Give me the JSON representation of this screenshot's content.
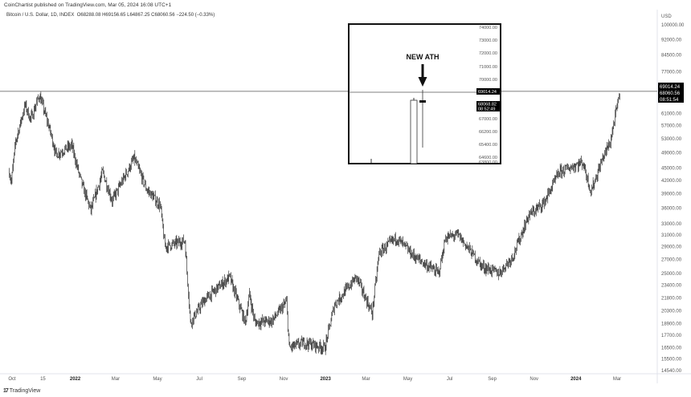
{
  "header": {
    "published": "CoinChartist published on TradingView.com, Mar 05, 2024 16:08 UTC+1",
    "symbol": "Bitcoin / U.S. Dollar, 1D, INDEX",
    "open": "O68288.08",
    "high": "H69156.65",
    "low": "L64867.25",
    "close": "C68060.56",
    "change": "−224.50 (−0.33%)"
  },
  "footer": {
    "brand": "TradingView",
    "logo_icon": "tradingview-logo-icon"
  },
  "colors": {
    "candle": "#111111",
    "background": "#ffffff",
    "label_bg": "#000000",
    "grid_border": "#e0e3eb"
  },
  "chart_data": {
    "type": "candlestick",
    "title": "Bitcoin / U.S. Dollar, 1D, INDEX",
    "scale": "log",
    "currency": "USD",
    "ylim": [
      14540,
      100000
    ],
    "y_ticks": [
      "100000.00",
      "92000.00",
      "84500.00",
      "77000.00",
      "61000.00",
      "57000.00",
      "53000.00",
      "49000.00",
      "45000.00",
      "42000.00",
      "39000.00",
      "36000.00",
      "33000.00",
      "31000.00",
      "29000.00",
      "27000.00",
      "25000.00",
      "23400.00",
      "21800.00",
      "20300.00",
      "18900.00",
      "17700.00",
      "16500.00",
      "15500.00",
      "14540.00"
    ],
    "x_ticks": [
      {
        "label": "Oct",
        "date": "2021-10-01",
        "bold": false
      },
      {
        "label": "15",
        "date": "2021-11-15",
        "bold": false
      },
      {
        "label": "2022",
        "date": "2022-01-01",
        "bold": true
      },
      {
        "label": "Mar",
        "date": "2022-03-01",
        "bold": false
      },
      {
        "label": "May",
        "date": "2022-05-01",
        "bold": false
      },
      {
        "label": "Jul",
        "date": "2022-07-01",
        "bold": false
      },
      {
        "label": "Sep",
        "date": "2022-09-01",
        "bold": false
      },
      {
        "label": "Nov",
        "date": "2022-11-01",
        "bold": false
      },
      {
        "label": "2023",
        "date": "2023-01-01",
        "bold": true
      },
      {
        "label": "Mar",
        "date": "2023-03-01",
        "bold": false
      },
      {
        "label": "May",
        "date": "2023-05-01",
        "bold": false
      },
      {
        "label": "Jul",
        "date": "2023-07-01",
        "bold": false
      },
      {
        "label": "Sep",
        "date": "2023-09-01",
        "bold": false
      },
      {
        "label": "Nov",
        "date": "2023-11-01",
        "bold": false
      },
      {
        "label": "2024",
        "date": "2024-01-01",
        "bold": true
      },
      {
        "label": "Mar",
        "date": "2024-03-01",
        "bold": false
      }
    ],
    "approx_closes": [
      [
        "2021-09-27",
        44000
      ],
      [
        "2021-09-30",
        41500
      ],
      [
        "2021-10-06",
        52000
      ],
      [
        "2021-10-20",
        64000
      ],
      [
        "2021-10-28",
        59000
      ],
      [
        "2021-11-10",
        67500
      ],
      [
        "2021-11-26",
        55000
      ],
      [
        "2021-12-04",
        48500
      ],
      [
        "2021-12-27",
        51000
      ],
      [
        "2022-01-10",
        41500
      ],
      [
        "2022-01-24",
        35500
      ],
      [
        "2022-02-10",
        44000
      ],
      [
        "2022-02-24",
        37500
      ],
      [
        "2022-03-28",
        47500
      ],
      [
        "2022-04-15",
        40000
      ],
      [
        "2022-05-05",
        36500
      ],
      [
        "2022-05-12",
        29000
      ],
      [
        "2022-06-10",
        30000
      ],
      [
        "2022-06-18",
        19000
      ],
      [
        "2022-07-08",
        21500
      ],
      [
        "2022-08-14",
        24500
      ],
      [
        "2022-09-06",
        19000
      ],
      [
        "2022-09-12",
        22200
      ],
      [
        "2022-09-20",
        19000
      ],
      [
        "2022-10-15",
        19200
      ],
      [
        "2022-11-05",
        21300
      ],
      [
        "2022-11-09",
        16500
      ],
      [
        "2022-12-01",
        17000
      ],
      [
        "2022-12-31",
        16500
      ],
      [
        "2023-01-14",
        21000
      ],
      [
        "2023-02-15",
        24500
      ],
      [
        "2023-03-10",
        20000
      ],
      [
        "2023-03-20",
        28000
      ],
      [
        "2023-04-14",
        30500
      ],
      [
        "2023-05-10",
        27500
      ],
      [
        "2023-06-15",
        25000
      ],
      [
        "2023-06-25",
        30500
      ],
      [
        "2023-07-13",
        31000
      ],
      [
        "2023-08-17",
        26000
      ],
      [
        "2023-09-11",
        25000
      ],
      [
        "2023-10-01",
        27500
      ],
      [
        "2023-10-24",
        34500
      ],
      [
        "2023-11-15",
        37000
      ],
      [
        "2023-12-08",
        44000
      ],
      [
        "2024-01-11",
        46500
      ],
      [
        "2024-01-23",
        39500
      ],
      [
        "2024-02-10",
        48000
      ],
      [
        "2024-02-20",
        52000
      ],
      [
        "2024-02-28",
        61000
      ],
      [
        "2024-03-05",
        68060.56
      ]
    ],
    "ath_line": 69014.24,
    "last_price_label": [
      "69014.24",
      "68060.56",
      "08:51:54"
    ],
    "inset": {
      "annotation": "NEW ATH",
      "y_ticks": [
        "74000.00",
        "73000.00",
        "72000.00",
        "71000.00",
        "70000.00",
        "67000.00",
        "66200.00",
        "65400.00",
        "64600.00",
        "63800.00"
      ],
      "ath_label": "69014.24",
      "price_label": [
        "68068.82",
        "08:52:49"
      ]
    }
  }
}
